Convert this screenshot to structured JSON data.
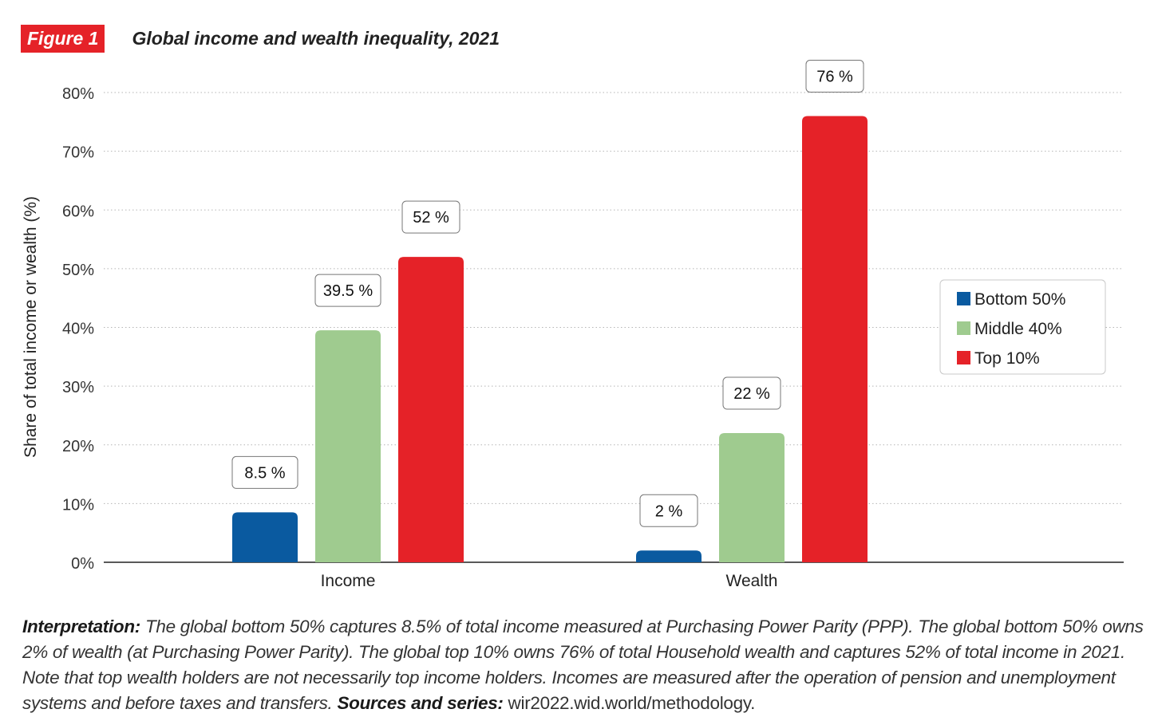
{
  "figure": {
    "badge": "Figure 1",
    "title": "Global income and wealth inequality, 2021"
  },
  "chart_data": {
    "type": "bar",
    "title": "Global income and wealth inequality, 2021",
    "ylabel": "Share of total income or wealth (%)",
    "xlabel": "",
    "categories": [
      "Income",
      "Wealth"
    ],
    "ylim": [
      0,
      80
    ],
    "yticks": [
      0,
      10,
      20,
      30,
      40,
      50,
      60,
      70,
      80
    ],
    "ytick_labels": [
      "0%",
      "10%",
      "20%",
      "30%",
      "40%",
      "50%",
      "60%",
      "70%",
      "80%"
    ],
    "grid": "horizontal dotted",
    "legend_position": "right",
    "series": [
      {
        "name": "Bottom 50%",
        "color": "#0a5aa0",
        "values": [
          8.5,
          2
        ],
        "labels": [
          "8.5 %",
          "2 %"
        ]
      },
      {
        "name": "Middle 40%",
        "color": "#9fcb8f",
        "values": [
          39.5,
          22
        ],
        "labels": [
          "39.5 %",
          "22 %"
        ]
      },
      {
        "name": "Top 10%",
        "color": "#e52228",
        "values": [
          52,
          76
        ],
        "labels": [
          "52 %",
          "76 %"
        ]
      }
    ]
  },
  "interpretation": {
    "lead": "Interpretation:",
    "body": " The global bottom 50% captures 8.5% of total income measured at Purchasing Power Parity (PPP). The global bottom 50% owns 2% of wealth (at Purchasing Power Parity). The global top 10% owns 76% of total Household wealth and captures 52% of total income in 2021. Note that top wealth holders are not necessarily top income holders. Incomes are measured after the operation of pension and unemployment systems and before taxes and transfers. ",
    "sources_label": "Sources and series:",
    "sources_value": " wir2022.wid.world/methodology."
  }
}
